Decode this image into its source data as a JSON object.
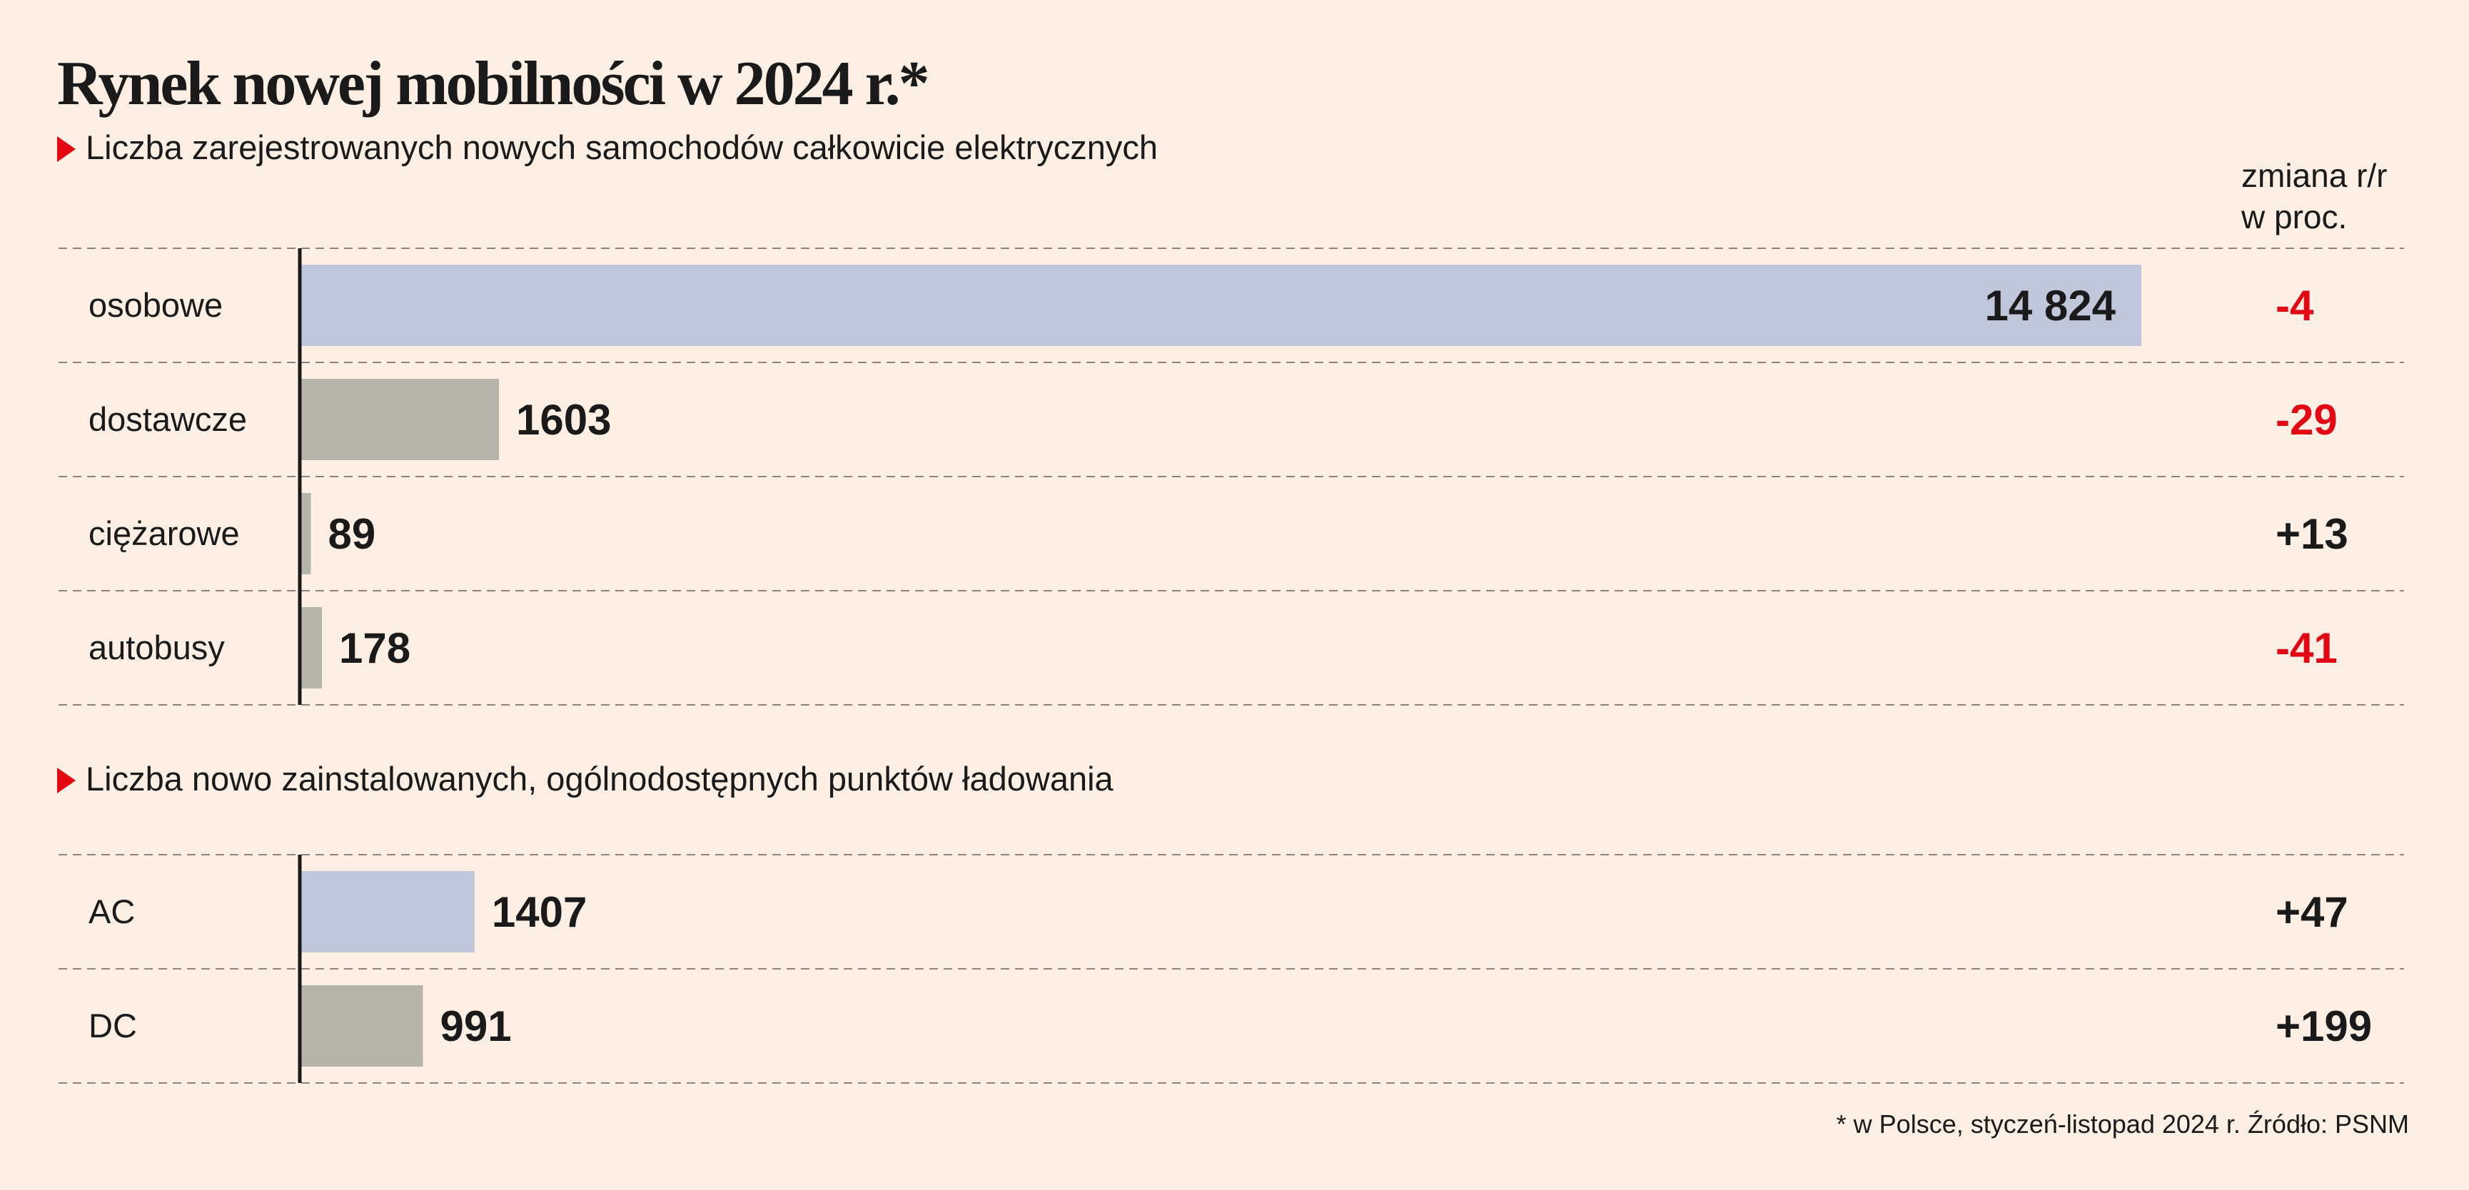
{
  "header": {
    "title": "Rynek nowej mobilności w 2024 r.*",
    "change_header_line1": "zmiana r/r",
    "change_header_line2": "w proc."
  },
  "colors": {
    "background": "#fdefe3",
    "bar_highlight": "#c1c7da",
    "bar_default": "#b5b4aa",
    "negative": "#e30613",
    "positive": "#1a1a1a",
    "marker": "#e30613"
  },
  "chart_data": [
    {
      "type": "bar",
      "orientation": "horizontal",
      "subtitle": "Liczba zarejestrowanych nowych samochodów całkowicie elektrycznych",
      "categories": [
        "osobowe",
        "dostawcze",
        "ciężarowe",
        "autobusy"
      ],
      "values": [
        14824,
        1603,
        89,
        178
      ],
      "value_labels": [
        "14 824",
        "1603",
        "89",
        "178"
      ],
      "change_yoy_pct": [
        "-4",
        "-29",
        "+13",
        "-41"
      ],
      "xlim": [
        0,
        14824
      ]
    },
    {
      "type": "bar",
      "orientation": "horizontal",
      "subtitle": "Liczba nowo zainstalowanych, ogólnodostępnych punktów ładowania",
      "categories": [
        "AC",
        "DC"
      ],
      "values": [
        1407,
        991
      ],
      "value_labels": [
        "1407",
        "991"
      ],
      "change_yoy_pct": [
        "+47",
        "+199"
      ],
      "xlim": [
        0,
        14824
      ]
    }
  ],
  "footnote": "* w Polsce, styczeń-listopad 2024 r. Źródło: PSNM"
}
